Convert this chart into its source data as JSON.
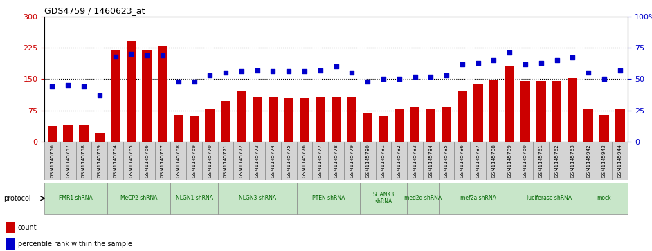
{
  "title": "GDS4759 / 1460623_at",
  "samples": [
    "GSM1145756",
    "GSM1145757",
    "GSM1145758",
    "GSM1145759",
    "GSM1145764",
    "GSM1145765",
    "GSM1145766",
    "GSM1145767",
    "GSM1145768",
    "GSM1145769",
    "GSM1145770",
    "GSM1145771",
    "GSM1145772",
    "GSM1145773",
    "GSM1145774",
    "GSM1145775",
    "GSM1145776",
    "GSM1145777",
    "GSM1145778",
    "GSM1145779",
    "GSM1145780",
    "GSM1145781",
    "GSM1145782",
    "GSM1145783",
    "GSM1145784",
    "GSM1145785",
    "GSM1145786",
    "GSM1145787",
    "GSM1145788",
    "GSM1145789",
    "GSM1145760",
    "GSM1145761",
    "GSM1145762",
    "GSM1145763",
    "GSM1145942",
    "GSM1145943",
    "GSM1145944"
  ],
  "counts": [
    38,
    40,
    40,
    22,
    218,
    242,
    218,
    228,
    65,
    62,
    78,
    98,
    120,
    108,
    108,
    105,
    105,
    108,
    108,
    108,
    68,
    62,
    78,
    82,
    78,
    82,
    122,
    138,
    148,
    182,
    145,
    145,
    145,
    152,
    78,
    65,
    78
  ],
  "percentiles": [
    44,
    45,
    44,
    37,
    68,
    70,
    69,
    69,
    48,
    48,
    53,
    55,
    56,
    57,
    56,
    56,
    56,
    57,
    60,
    55,
    48,
    50,
    50,
    52,
    52,
    53,
    62,
    63,
    65,
    71,
    62,
    63,
    65,
    67,
    55,
    50,
    57
  ],
  "groups": [
    {
      "label": "FMR1 shRNA",
      "start": 0,
      "end": 4
    },
    {
      "label": "MeCP2 shRNA",
      "start": 4,
      "end": 8
    },
    {
      "label": "NLGN1 shRNA",
      "start": 8,
      "end": 11
    },
    {
      "label": "NLGN3 shRNA",
      "start": 11,
      "end": 16
    },
    {
      "label": "PTEN shRNA",
      "start": 16,
      "end": 20
    },
    {
      "label": "SHANK3\nshRNA",
      "start": 20,
      "end": 23
    },
    {
      "label": "med2d shRNA",
      "start": 23,
      "end": 25
    },
    {
      "label": "mef2a shRNA",
      "start": 25,
      "end": 30
    },
    {
      "label": "luciferase shRNA",
      "start": 30,
      "end": 34
    },
    {
      "label": "mock",
      "start": 34,
      "end": 37
    }
  ],
  "bar_color": "#cc0000",
  "dot_color": "#0000cc",
  "left_ylim": [
    0,
    300
  ],
  "right_ylim": [
    0,
    100
  ],
  "left_yticks": [
    0,
    75,
    150,
    225,
    300
  ],
  "right_yticks": [
    0,
    25,
    50,
    75,
    100
  ],
  "right_yticklabels": [
    "0",
    "25",
    "50",
    "75",
    "100%"
  ],
  "group_color": "#c8e6c9",
  "group_text_color": "#006600",
  "group_border_color": "#888888",
  "xtick_bg_color": "#d4d4d4",
  "xtick_border_color": "#888888"
}
